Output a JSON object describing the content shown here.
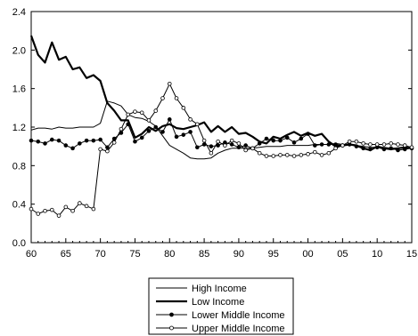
{
  "chart_data": {
    "type": "line",
    "title": "",
    "xlabel": "",
    "ylabel": "",
    "x_tick_labels": [
      "60",
      "65",
      "70",
      "75",
      "80",
      "85",
      "90",
      "95",
      "00",
      "05",
      "10",
      "15"
    ],
    "y_tick_labels": [
      "0.0",
      "0.4",
      "0.8",
      "1.2",
      "1.6",
      "2.0",
      "2.4"
    ],
    "xlim": [
      1960,
      2015
    ],
    "ylim": [
      0.0,
      2.4
    ],
    "grid": false,
    "legend_position": "bottom-center",
    "x": [
      1960,
      1961,
      1962,
      1963,
      1964,
      1965,
      1966,
      1967,
      1968,
      1969,
      1970,
      1971,
      1972,
      1973,
      1974,
      1975,
      1976,
      1977,
      1978,
      1979,
      1980,
      1981,
      1982,
      1983,
      1984,
      1985,
      1986,
      1987,
      1988,
      1989,
      1990,
      1991,
      1992,
      1993,
      1994,
      1995,
      1996,
      1997,
      1998,
      1999,
      2000,
      2001,
      2002,
      2003,
      2004,
      2005,
      2006,
      2007,
      2008,
      2009,
      2010,
      2011,
      2012,
      2013,
      2014,
      2015
    ],
    "series": [
      {
        "name": "High Income",
        "style": "thin",
        "values": [
          1.17,
          1.19,
          1.19,
          1.18,
          1.2,
          1.19,
          1.19,
          1.2,
          1.2,
          1.2,
          1.24,
          1.47,
          1.45,
          1.42,
          1.33,
          1.3,
          1.29,
          1.26,
          1.21,
          1.11,
          1.01,
          0.97,
          0.93,
          0.88,
          0.87,
          0.87,
          0.88,
          0.93,
          0.96,
          0.98,
          0.98,
          0.98,
          0.98,
          0.99,
          1.0,
          1.0,
          1.0,
          1.01,
          1.01,
          1.01,
          1.01,
          1.02,
          1.02,
          1.02,
          1.03,
          1.02,
          1.02,
          1.01,
          1.0,
          0.99,
          0.99,
          0.99,
          0.98,
          0.98,
          0.98,
          0.99
        ]
      },
      {
        "name": "Low Income",
        "style": "thick",
        "values": [
          2.15,
          1.95,
          1.87,
          2.08,
          1.9,
          1.93,
          1.8,
          1.82,
          1.71,
          1.74,
          1.68,
          1.45,
          1.37,
          1.27,
          1.27,
          1.09,
          1.13,
          1.2,
          1.16,
          1.21,
          1.23,
          1.19,
          1.18,
          1.2,
          1.22,
          1.25,
          1.15,
          1.21,
          1.15,
          1.2,
          1.13,
          1.14,
          1.1,
          1.05,
          1.03,
          1.1,
          1.08,
          1.12,
          1.15,
          1.11,
          1.14,
          1.11,
          1.13,
          1.05,
          1.0,
          1.01,
          1.02,
          1.01,
          0.98,
          0.96,
          1.0,
          0.98,
          0.97,
          0.98,
          0.99,
          0.98
        ]
      },
      {
        "name": "Lower Middle Income",
        "style": "filled-dots",
        "values": [
          1.06,
          1.05,
          1.03,
          1.07,
          1.06,
          1.01,
          0.98,
          1.03,
          1.06,
          1.06,
          1.07,
          0.99,
          1.08,
          1.14,
          1.23,
          1.05,
          1.09,
          1.16,
          1.2,
          1.15,
          1.28,
          1.1,
          1.12,
          1.15,
          0.99,
          1.02,
          1.0,
          1.01,
          1.04,
          1.02,
          0.99,
          1.01,
          0.98,
          1.03,
          1.08,
          1.06,
          1.06,
          1.09,
          1.04,
          1.08,
          1.13,
          1.01,
          1.02,
          1.02,
          1.02,
          1.01,
          1.02,
          1.0,
          0.98,
          0.97,
          0.99,
          0.97,
          0.98,
          0.96,
          0.97,
          0.98
        ]
      },
      {
        "name": "Upper Middle Income",
        "style": "open-dots",
        "values": [
          0.35,
          0.3,
          0.33,
          0.34,
          0.28,
          0.37,
          0.33,
          0.41,
          0.38,
          0.35,
          0.97,
          0.95,
          1.04,
          1.18,
          1.33,
          1.36,
          1.35,
          1.27,
          1.37,
          1.5,
          1.65,
          1.5,
          1.4,
          1.28,
          1.23,
          1.06,
          0.93,
          1.05,
          1.01,
          1.06,
          1.03,
          0.96,
          0.98,
          0.93,
          0.9,
          0.9,
          0.91,
          0.91,
          0.9,
          0.91,
          0.92,
          0.94,
          0.91,
          0.93,
          0.98,
          1.01,
          1.05,
          1.05,
          1.03,
          1.02,
          1.02,
          1.02,
          1.03,
          1.02,
          1.01,
          0.99
        ]
      }
    ]
  }
}
